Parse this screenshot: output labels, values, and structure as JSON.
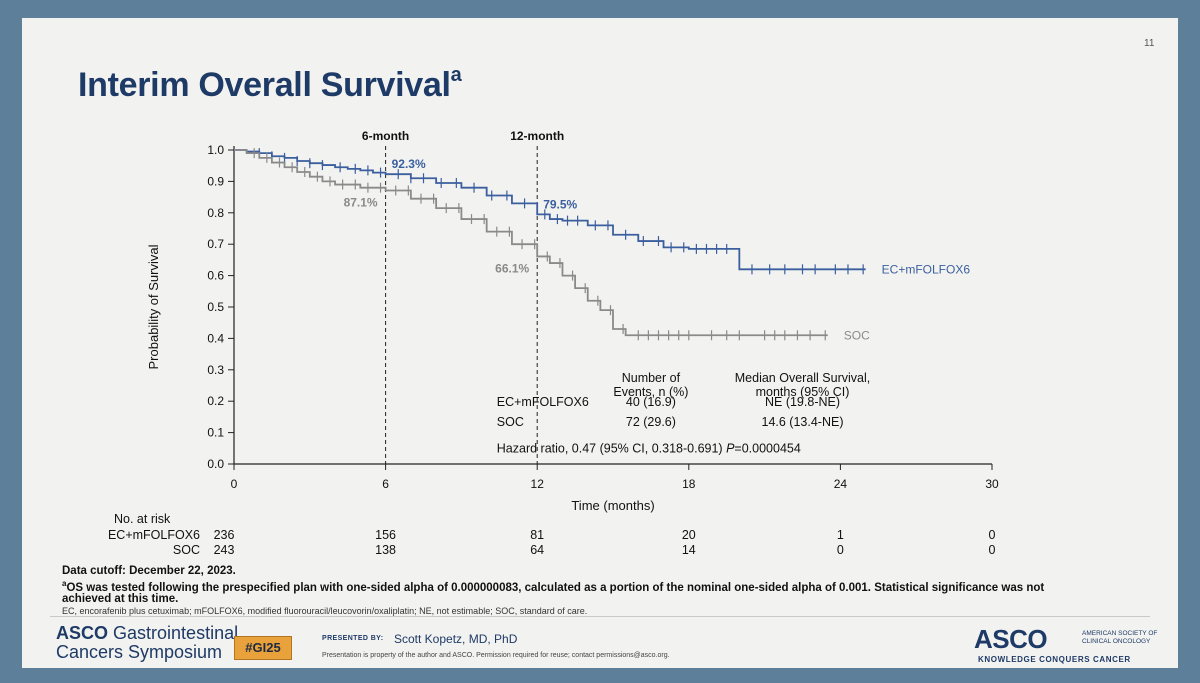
{
  "slide": {
    "number": "11",
    "title": "Interim Overall Survival",
    "title_superscript": "a"
  },
  "chart_data": {
    "type": "line",
    "subtype": "kaplan-meier",
    "ylabel": "Probability of Survival",
    "xlabel": "Time (months)",
    "xlim": [
      0,
      30
    ],
    "ylim": [
      0,
      1.0
    ],
    "x_ticks": [
      "0",
      "6",
      "12",
      "18",
      "24",
      "30"
    ],
    "y_ticks": [
      "0.0",
      "0.1",
      "0.2",
      "0.3",
      "0.4",
      "0.5",
      "0.6",
      "0.7",
      "0.8",
      "0.9",
      "1.0"
    ],
    "reference_lines": [
      {
        "x": 6,
        "label": "6-month"
      },
      {
        "x": 12,
        "label": "12-month"
      }
    ],
    "series": [
      {
        "name": "EC+mFOLFOX6",
        "color": "#3b5f9e",
        "points": [
          [
            0,
            1.0
          ],
          [
            0.5,
            0.995
          ],
          [
            1,
            0.99
          ],
          [
            1.5,
            0.98
          ],
          [
            2,
            0.975
          ],
          [
            2.5,
            0.965
          ],
          [
            3,
            0.958
          ],
          [
            3.5,
            0.952
          ],
          [
            4,
            0.945
          ],
          [
            4.5,
            0.94
          ],
          [
            5,
            0.935
          ],
          [
            5.5,
            0.928
          ],
          [
            6,
            0.923
          ],
          [
            7,
            0.91
          ],
          [
            8,
            0.895
          ],
          [
            9,
            0.88
          ],
          [
            10,
            0.855
          ],
          [
            11,
            0.83
          ],
          [
            12,
            0.795
          ],
          [
            12.5,
            0.78
          ],
          [
            13,
            0.775
          ],
          [
            14,
            0.76
          ],
          [
            15,
            0.73
          ],
          [
            16,
            0.71
          ],
          [
            17,
            0.69
          ],
          [
            18,
            0.685
          ],
          [
            19,
            0.685
          ],
          [
            19.8,
            0.685
          ],
          [
            20,
            0.62
          ],
          [
            25,
            0.62
          ]
        ],
        "censor_x": [
          1,
          1.5,
          2,
          2.5,
          3,
          3.5,
          4.2,
          4.8,
          5.3,
          5.8,
          6.5,
          7,
          7.5,
          8.2,
          8.8,
          9.5,
          10.2,
          10.8,
          11.5,
          12.3,
          12.8,
          13.2,
          13.6,
          14.3,
          14.8,
          15.5,
          16.2,
          16.8,
          17.3,
          17.8,
          18.3,
          18.7,
          19.1,
          19.5,
          20.5,
          21.2,
          21.8,
          22.5,
          23,
          23.8,
          24.3,
          24.9
        ],
        "landmarks": [
          {
            "x": 6,
            "y": 0.923,
            "label": "92.3%"
          },
          {
            "x": 12,
            "y": 0.795,
            "label": "79.5%"
          }
        ],
        "end_label": "EC+mFOLFOX6"
      },
      {
        "name": "SOC",
        "color": "#8a8a8a",
        "points": [
          [
            0,
            1.0
          ],
          [
            0.5,
            0.99
          ],
          [
            1,
            0.975
          ],
          [
            1.5,
            0.96
          ],
          [
            2,
            0.945
          ],
          [
            2.5,
            0.93
          ],
          [
            3,
            0.915
          ],
          [
            3.5,
            0.9
          ],
          [
            4,
            0.89
          ],
          [
            5,
            0.88
          ],
          [
            6,
            0.871
          ],
          [
            7,
            0.845
          ],
          [
            8,
            0.815
          ],
          [
            9,
            0.78
          ],
          [
            10,
            0.74
          ],
          [
            11,
            0.7
          ],
          [
            12,
            0.661
          ],
          [
            12.5,
            0.64
          ],
          [
            13,
            0.6
          ],
          [
            13.5,
            0.56
          ],
          [
            14,
            0.52
          ],
          [
            14.5,
            0.49
          ],
          [
            15,
            0.43
          ],
          [
            15.5,
            0.41
          ],
          [
            23.5,
            0.41
          ]
        ],
        "censor_x": [
          0.8,
          1.3,
          1.8,
          2.3,
          2.8,
          3.3,
          3.8,
          4.3,
          4.8,
          5.3,
          5.8,
          6.4,
          6.9,
          7.4,
          7.9,
          8.4,
          8.9,
          9.4,
          9.9,
          10.4,
          10.9,
          11.4,
          11.9,
          12.4,
          12.9,
          13.4,
          13.9,
          14.4,
          14.9,
          15.4,
          16,
          16.4,
          16.8,
          17.2,
          17.6,
          18,
          18.9,
          19.5,
          20,
          21,
          21.4,
          21.8,
          22.3,
          22.8,
          23.4
        ],
        "landmarks": [
          {
            "x": 6,
            "y": 0.871,
            "label": "87.1%"
          },
          {
            "x": 12,
            "y": 0.661,
            "label": "66.1%"
          }
        ],
        "end_label": "SOC"
      }
    ],
    "stats_table": {
      "headers": [
        "",
        "Number of Events, n (%)",
        "Median Overall Survival, months (95% CI)"
      ],
      "header_col2": [
        "Number of",
        "Events, n (%)"
      ],
      "header_col3": [
        "Median Overall Survival,",
        "months (95% CI)"
      ],
      "rows": [
        [
          "EC+mFOLFOX6",
          "40 (16.9)",
          "NE (19.8-NE)"
        ],
        [
          "SOC",
          "72 (29.6)",
          "14.6 (13.4-NE)"
        ]
      ],
      "hazard_ratio_prefix": "Hazard ratio, 0.47 (95% CI, 0.318-0.691) ",
      "hazard_ratio_p_label": "P",
      "hazard_ratio_p_value": "=0.0000454"
    },
    "risk_table": {
      "title": "No. at risk",
      "rows": [
        {
          "label": "EC+mFOLFOX6",
          "values": [
            "236",
            "156",
            "81",
            "20",
            "1",
            "0"
          ]
        },
        {
          "label": "SOC",
          "values": [
            "243",
            "138",
            "64",
            "14",
            "0",
            "0"
          ]
        }
      ]
    }
  },
  "footnotes": {
    "cutoff": "Data cutoff: December 22, 2023.",
    "note_marker": "a",
    "note_line1": "OS was tested following the prespecified plan with one-sided alpha of 0.000000083, calculated as a portion of the nominal one-sided alpha of 0.001. Statistical significance was not",
    "note_line2": "achieved at this time.",
    "abbreviations": "EC, encorafenib plus cetuximab; mFOLFOX6, modified fluorouracil/leucovorin/oxaliplatin; NE, not estimable; SOC, standard of care."
  },
  "footer": {
    "left_logo_asco": "ASCO",
    "left_logo_line1": "Gastrointestinal",
    "left_logo_line2": "Cancers Symposium",
    "hashtag": "#GI25",
    "presented_by_label": "PRESENTED BY:",
    "presenter": "Scott Kopetz, MD, PhD",
    "permission": "Presentation is property of the author and ASCO. Permission required for reuse; contact permissions@asco.org.",
    "right_logo": "ASCO",
    "right_sub_line1": "AMERICAN SOCIETY OF",
    "right_sub_line2": "CLINICAL ONCOLOGY",
    "right_tagline": "KNOWLEDGE CONQUERS CANCER"
  }
}
